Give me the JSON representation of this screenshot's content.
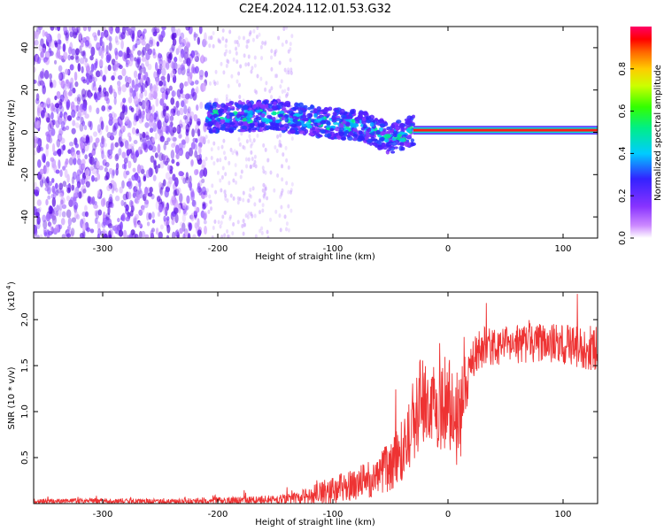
{
  "figure": {
    "title": "C2E4.2024.112.01.53.G32"
  },
  "colors": {
    "snr_line": "#ee3333",
    "spectrogram_scatter": "#7733ee",
    "colormap": [
      "#ffffff",
      "#cc88ff",
      "#8833ff",
      "#3322ff",
      "#00ccff",
      "#00ee88",
      "#33ff00",
      "#ccff00",
      "#ffcc00",
      "#ff6600",
      "#ff0000",
      "#ff0066"
    ]
  },
  "chart_data": [
    {
      "type": "heatmap",
      "title": "C2E4.2024.112.01.53.G32",
      "xlabel": "Height of straight line (km)",
      "ylabel": "Frequency (Hz)",
      "xlim": [
        -360,
        130
      ],
      "ylim": [
        -50,
        50
      ],
      "x_ticks": [
        -300,
        -200,
        -100,
        0,
        100
      ],
      "y_ticks": [
        -40,
        -20,
        0,
        20,
        40
      ],
      "colorbar": {
        "label": "Normalized spectral amplitude",
        "range": [
          0,
          1
        ],
        "ticks": [
          "0.0",
          "0.2",
          "0.4",
          "0.6",
          "0.8"
        ]
      },
      "regions": [
        {
          "name": "noise",
          "x_range": [
            -360,
            -210
          ],
          "freq_range": [
            -50,
            50
          ],
          "amplitude": 0.15
        },
        {
          "name": "sparse noise",
          "x_range": [
            -210,
            -135
          ],
          "freq_range": [
            -50,
            50
          ],
          "amplitude": 0.05
        },
        {
          "name": "signal",
          "x_range": [
            -210,
            -30
          ],
          "freq_range": [
            -10,
            15
          ],
          "amplitude": 0.35
        },
        {
          "name": "carrier",
          "x_range": [
            -30,
            130
          ],
          "freq_center": 1,
          "amplitude": 0.95
        }
      ],
      "signal_center": [
        {
          "x": -210,
          "freq": 7
        },
        {
          "x": -150,
          "freq": 8
        },
        {
          "x": -100,
          "freq": 4
        },
        {
          "x": -75,
          "freq": 3
        },
        {
          "x": -50,
          "freq": -3
        },
        {
          "x": -35,
          "freq": 0
        },
        {
          "x": -25,
          "freq": 1
        },
        {
          "x": 0,
          "freq": 2
        },
        {
          "x": 130,
          "freq": 1
        }
      ]
    },
    {
      "type": "line",
      "xlabel": "Height of straight line (km)",
      "ylabel": "SNR (10 * v/v)",
      "y_multiplier": "(x10",
      "y_multiplier_exp": "4",
      "xlim": [
        -360,
        130
      ],
      "ylim": [
        0,
        2.3
      ],
      "x_ticks": [
        -300,
        -200,
        -100,
        0,
        100
      ],
      "y_ticks": [
        0.5,
        1.0,
        1.5,
        2.0
      ],
      "series": [
        {
          "x": [
            -360,
            -300,
            -250,
            -200,
            -160,
            -140,
            -120,
            -100,
            -80,
            -60,
            -40,
            -30,
            -20,
            -10,
            0,
            10,
            20,
            30,
            50,
            70,
            90,
            110,
            130
          ],
          "y": [
            0.02,
            0.03,
            0.02,
            0.03,
            0.04,
            0.04,
            0.08,
            0.15,
            0.22,
            0.3,
            0.55,
            0.9,
            1.2,
            1.0,
            1.1,
            0.95,
            1.55,
            1.7,
            1.72,
            1.75,
            1.74,
            1.72,
            1.68
          ],
          "spread": [
            0.03,
            0.03,
            0.03,
            0.04,
            0.05,
            0.06,
            0.1,
            0.15,
            0.18,
            0.22,
            0.35,
            0.45,
            0.5,
            0.45,
            0.5,
            0.6,
            0.25,
            0.22,
            0.2,
            0.22,
            0.22,
            0.24,
            0.24
          ]
        }
      ]
    }
  ]
}
